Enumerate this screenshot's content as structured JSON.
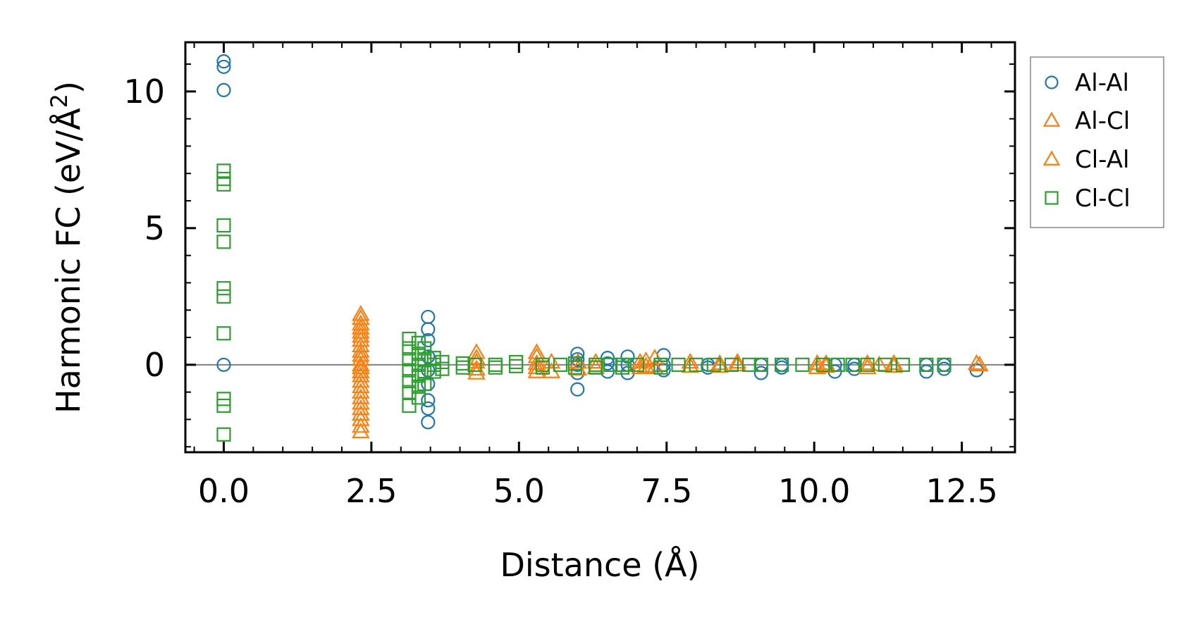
{
  "chart_data": {
    "type": "scatter",
    "title": "",
    "xlabel": "Distance (Å)",
    "ylabel_main": "Harmonic FC (eV/Å",
    "ylabel_sup": "2",
    "ylabel_end": ")",
    "xlim": [
      -0.65,
      13.4
    ],
    "ylim": [
      -3.2,
      11.8
    ],
    "xticks": [
      0.0,
      2.5,
      5.0,
      7.5,
      10.0,
      12.5
    ],
    "xtick_labels": [
      "0.0",
      "2.5",
      "5.0",
      "7.5",
      "10.0",
      "12.5"
    ],
    "yticks": [
      0,
      5,
      10
    ],
    "ytick_labels": [
      "0",
      "5",
      "10"
    ],
    "zero_line": true,
    "grid": false,
    "legend_position": "outside-right-top",
    "series": [
      {
        "name": "Al-Al",
        "marker": "circle",
        "filled": false,
        "color": "#1f77b4",
        "points": [
          [
            0.0,
            11.1
          ],
          [
            0.0,
            10.9
          ],
          [
            0.0,
            10.05
          ],
          [
            0.0,
            0.0
          ],
          [
            3.46,
            1.75
          ],
          [
            3.46,
            1.3
          ],
          [
            3.46,
            0.9
          ],
          [
            3.46,
            0.3
          ],
          [
            3.46,
            -0.2
          ],
          [
            3.46,
            -0.7
          ],
          [
            3.46,
            -1.3
          ],
          [
            3.46,
            -1.6
          ],
          [
            3.46,
            -2.1
          ],
          [
            5.99,
            0.4
          ],
          [
            5.99,
            0.2
          ],
          [
            5.99,
            0.0
          ],
          [
            5.99,
            -0.3
          ],
          [
            5.99,
            -0.9
          ],
          [
            6.5,
            0.25
          ],
          [
            6.5,
            0.05
          ],
          [
            6.5,
            -0.25
          ],
          [
            6.84,
            0.3
          ],
          [
            6.84,
            0.0
          ],
          [
            6.84,
            -0.3
          ],
          [
            7.45,
            0.35
          ],
          [
            7.45,
            0.0
          ],
          [
            7.45,
            -0.2
          ],
          [
            8.2,
            0.0
          ],
          [
            8.2,
            -0.1
          ],
          [
            9.1,
            0.0
          ],
          [
            9.1,
            -0.3
          ],
          [
            9.45,
            0.0
          ],
          [
            9.45,
            -0.1
          ],
          [
            10.35,
            0.0
          ],
          [
            10.35,
            -0.25
          ],
          [
            10.68,
            0.0
          ],
          [
            10.68,
            -0.15
          ],
          [
            11.9,
            0.0
          ],
          [
            11.9,
            -0.25
          ],
          [
            12.2,
            0.0
          ],
          [
            12.2,
            -0.15
          ],
          [
            12.75,
            -0.2
          ]
        ]
      },
      {
        "name": "Al-Cl",
        "marker": "triangle",
        "filled": false,
        "color": "#ff7f0e",
        "points": [
          [
            2.32,
            1.85
          ],
          [
            2.32,
            1.5
          ],
          [
            2.32,
            1.2
          ],
          [
            2.32,
            0.9
          ],
          [
            2.32,
            0.5
          ],
          [
            2.32,
            0.2
          ],
          [
            2.32,
            -0.1
          ],
          [
            2.32,
            -0.4
          ],
          [
            2.32,
            -0.8
          ],
          [
            2.32,
            -1.2
          ],
          [
            2.32,
            -1.6
          ],
          [
            2.32,
            -2.0
          ],
          [
            2.32,
            -2.45
          ],
          [
            4.28,
            0.45
          ],
          [
            4.28,
            0.1
          ],
          [
            4.28,
            -0.3
          ],
          [
            5.3,
            0.45
          ],
          [
            5.3,
            0.05
          ],
          [
            5.3,
            -0.25
          ],
          [
            5.55,
            0.1
          ],
          [
            5.55,
            -0.25
          ],
          [
            6.3,
            0.1
          ],
          [
            6.3,
            -0.1
          ],
          [
            7.05,
            0.1
          ],
          [
            7.05,
            -0.1
          ],
          [
            7.3,
            0.25
          ],
          [
            7.3,
            -0.1
          ],
          [
            7.9,
            0.1
          ],
          [
            7.9,
            -0.05
          ],
          [
            8.7,
            0.1
          ],
          [
            8.7,
            0.0
          ],
          [
            10.05,
            0.05
          ],
          [
            10.05,
            -0.1
          ],
          [
            10.9,
            0.05
          ],
          [
            10.9,
            -0.1
          ],
          [
            11.35,
            0.05
          ],
          [
            11.35,
            -0.05
          ],
          [
            12.8,
            0.0
          ]
        ]
      },
      {
        "name": "Cl-Al",
        "marker": "triangle",
        "filled": false,
        "color": "#ff7f0e",
        "points": [
          [
            2.32,
            1.7
          ],
          [
            2.32,
            1.35
          ],
          [
            2.32,
            1.05
          ],
          [
            2.32,
            0.7
          ],
          [
            2.32,
            0.35
          ],
          [
            2.32,
            0.0
          ],
          [
            2.32,
            -0.25
          ],
          [
            2.32,
            -0.6
          ],
          [
            2.32,
            -1.0
          ],
          [
            2.32,
            -1.4
          ],
          [
            2.32,
            -1.8
          ],
          [
            2.32,
            -2.25
          ],
          [
            4.28,
            0.25
          ],
          [
            4.28,
            -0.15
          ],
          [
            5.3,
            0.3
          ],
          [
            5.3,
            -0.1
          ],
          [
            6.0,
            0.1
          ],
          [
            6.0,
            -0.15
          ],
          [
            7.15,
            0.15
          ],
          [
            7.15,
            -0.05
          ],
          [
            8.4,
            0.05
          ],
          [
            8.4,
            -0.05
          ],
          [
            10.2,
            0.05
          ],
          [
            10.2,
            -0.05
          ],
          [
            11.1,
            0.0
          ],
          [
            12.75,
            0.05
          ]
        ]
      },
      {
        "name": "Cl-Cl",
        "marker": "square",
        "filled": false,
        "color": "#2ca02c",
        "points": [
          [
            0.0,
            7.1
          ],
          [
            0.0,
            6.8
          ],
          [
            0.0,
            6.6
          ],
          [
            0.0,
            5.1
          ],
          [
            0.0,
            4.5
          ],
          [
            0.0,
            2.8
          ],
          [
            0.0,
            2.5
          ],
          [
            0.0,
            1.15
          ],
          [
            0.0,
            -1.25
          ],
          [
            0.0,
            -1.5
          ],
          [
            0.0,
            -2.55
          ],
          [
            3.14,
            0.95
          ],
          [
            3.14,
            0.6
          ],
          [
            3.14,
            0.2
          ],
          [
            3.14,
            -0.2
          ],
          [
            3.14,
            -0.6
          ],
          [
            3.14,
            -1.0
          ],
          [
            3.14,
            -1.5
          ],
          [
            3.3,
            0.8
          ],
          [
            3.3,
            0.4
          ],
          [
            3.3,
            0.0
          ],
          [
            3.3,
            -0.4
          ],
          [
            3.3,
            -0.8
          ],
          [
            3.3,
            -1.2
          ],
          [
            3.4,
            0.6
          ],
          [
            3.4,
            0.2
          ],
          [
            3.4,
            -0.3
          ],
          [
            3.4,
            -0.7
          ],
          [
            3.56,
            0.25
          ],
          [
            3.56,
            0.0
          ],
          [
            3.56,
            -0.25
          ],
          [
            3.7,
            0.1
          ],
          [
            3.7,
            -0.15
          ],
          [
            4.05,
            0.05
          ],
          [
            4.05,
            -0.1
          ],
          [
            4.25,
            0.0
          ],
          [
            4.6,
            0.0
          ],
          [
            4.6,
            -0.1
          ],
          [
            4.95,
            0.1
          ],
          [
            4.95,
            -0.05
          ],
          [
            5.4,
            0.0
          ],
          [
            5.4,
            -0.1
          ],
          [
            5.7,
            0.0
          ],
          [
            5.95,
            0.05
          ],
          [
            5.95,
            -0.1
          ],
          [
            6.3,
            0.0
          ],
          [
            6.3,
            -0.1
          ],
          [
            6.55,
            0.0
          ],
          [
            6.75,
            0.0
          ],
          [
            6.75,
            -0.1
          ],
          [
            7.0,
            0.0
          ],
          [
            7.4,
            0.0
          ],
          [
            7.4,
            -0.1
          ],
          [
            7.7,
            0.0
          ],
          [
            8.0,
            0.0
          ],
          [
            8.3,
            0.0
          ],
          [
            8.6,
            0.0
          ],
          [
            8.9,
            0.0
          ],
          [
            9.1,
            0.0
          ],
          [
            9.45,
            0.0
          ],
          [
            9.8,
            0.0
          ],
          [
            10.15,
            0.0
          ],
          [
            10.4,
            0.0
          ],
          [
            10.65,
            0.0
          ],
          [
            10.9,
            0.0
          ],
          [
            11.2,
            0.0
          ],
          [
            11.5,
            0.0
          ],
          [
            11.9,
            0.0
          ],
          [
            12.2,
            0.0
          ]
        ]
      }
    ]
  }
}
